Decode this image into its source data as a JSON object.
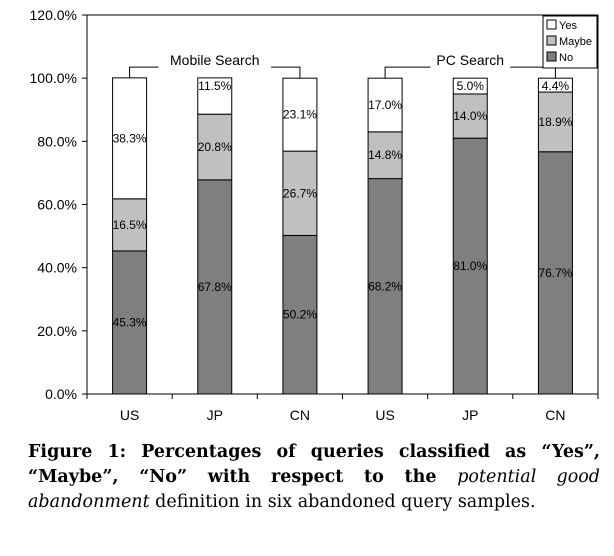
{
  "chart_data": {
    "type": "bar",
    "stacked": true,
    "categories": [
      "US",
      "JP",
      "CN",
      "US",
      "JP",
      "CN"
    ],
    "groups": [
      {
        "label": "Mobile Search",
        "categories": [
          0,
          1,
          2
        ]
      },
      {
        "label": "PC Search",
        "categories": [
          3,
          4,
          5
        ]
      }
    ],
    "series": [
      {
        "name": "No",
        "values": [
          45.3,
          67.8,
          50.2,
          68.2,
          81.0,
          76.7
        ],
        "labels": [
          "45.3%",
          "67.8%",
          "50.2%",
          "68.2%",
          "81.0%",
          "76.7%"
        ],
        "color": "#7f7f7f"
      },
      {
        "name": "Maybe",
        "values": [
          16.5,
          20.8,
          26.7,
          14.8,
          14.0,
          18.9
        ],
        "labels": [
          "16.5%",
          "20.8%",
          "26.7%",
          "14.8%",
          "14.0%",
          "18.9%"
        ],
        "color": "#c0c0c0"
      },
      {
        "name": "Yes",
        "values": [
          38.3,
          11.5,
          23.1,
          17.0,
          5.0,
          4.4
        ],
        "labels": [
          "38.3%",
          "11.5%",
          "23.1%",
          "17.0%",
          "5.0%",
          "4.4%"
        ],
        "color": "#ffffff"
      }
    ],
    "y_ticks": [
      "0.0%",
      "20.0%",
      "40.0%",
      "60.0%",
      "80.0%",
      "100.0%",
      "120.0%"
    ],
    "ylim": [
      0,
      120
    ],
    "legend_order": [
      "Yes",
      "Maybe",
      "No"
    ],
    "legend_position": "top-right",
    "grid": false
  },
  "caption": {
    "prefix": "Figure 1: Percentages of queries classified as “Yes”, “Maybe”, “No” with respect to the ",
    "italic": "potential good abandonment",
    "suffix": " definition in six abandoned query samples."
  }
}
